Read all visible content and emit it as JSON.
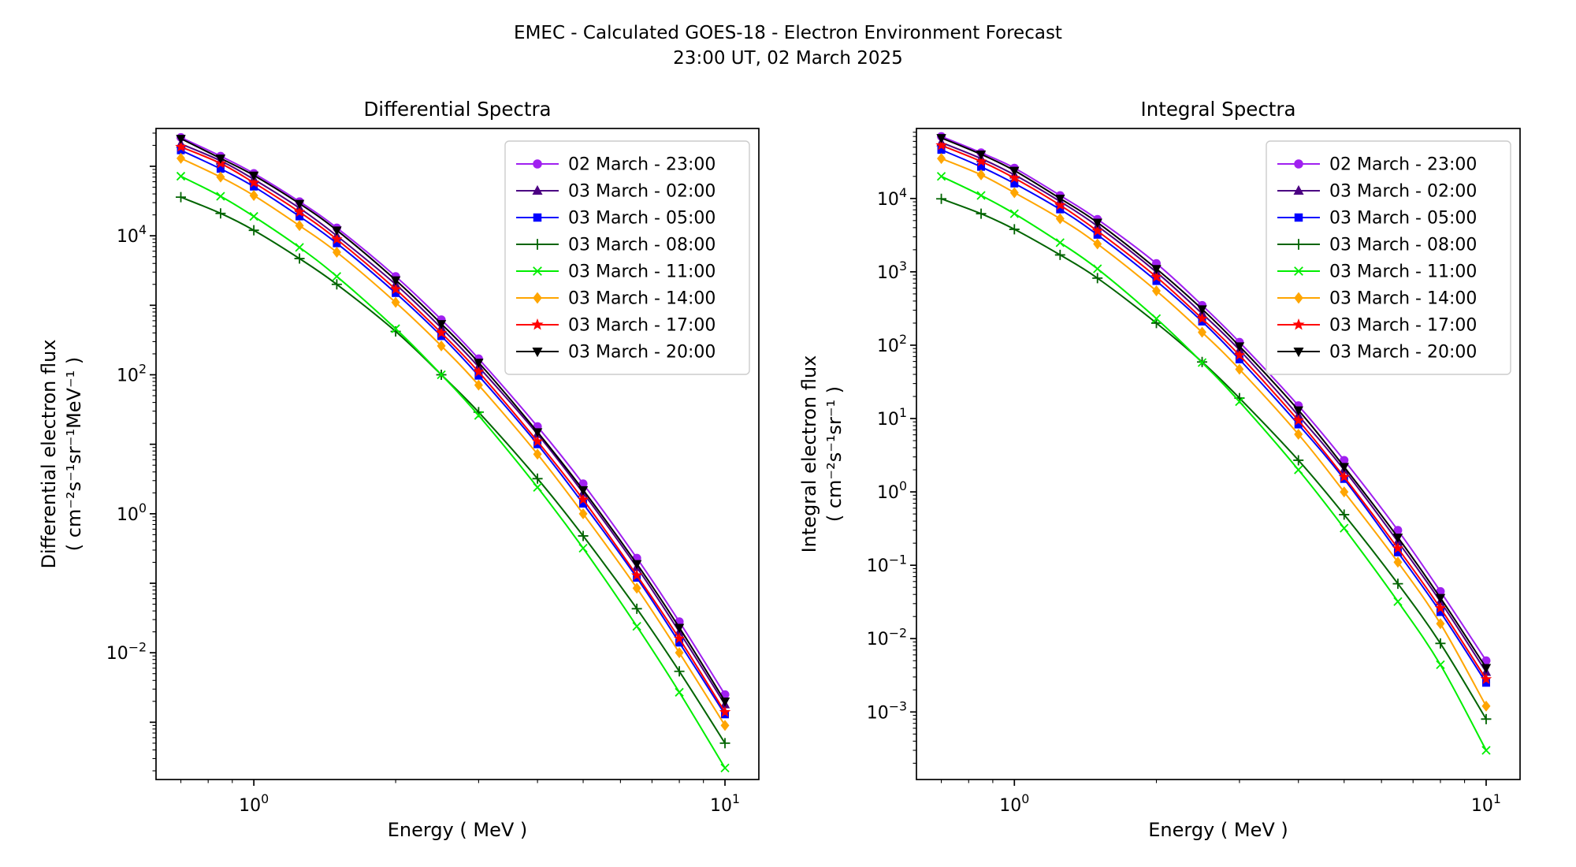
{
  "figure": {
    "title_line1": "EMEC - Calculated GOES-18 - Electron Environment Forecast",
    "title_line2": "23:00 UT, 02 March 2025",
    "background": "#ffffff",
    "text_color": "#000000"
  },
  "legend": {
    "border_color": "#cccccc",
    "fill_color": "#ffffff"
  },
  "chart_data": [
    {
      "type": "line",
      "title": "Differential Spectra",
      "xlabel": "Energy ( MeV )",
      "ylabel_line1": "Differential electron flux",
      "ylabel_line2": "( cm⁻²s⁻¹sr⁻¹MeV⁻¹ )",
      "xscale": "log",
      "yscale": "log",
      "grid": false,
      "legend_position": "upper right",
      "xlim": [
        0.62,
        11.8
      ],
      "ylim": [
        0.00015,
        350000.0
      ],
      "xticks": [
        {
          "value": 1,
          "label": "10⁰",
          "exp": 0
        },
        {
          "value": 10,
          "label": "10¹",
          "exp": 1
        }
      ],
      "yticks": [
        {
          "value": 10000,
          "label": "10⁴",
          "exp": 4
        },
        {
          "value": 100,
          "label": "10²",
          "exp": 2
        },
        {
          "value": 1,
          "label": "10⁰",
          "exp": 0
        },
        {
          "value": 0.01,
          "label": "10⁻²",
          "exp": -2
        }
      ],
      "x": [
        0.7,
        0.85,
        1.0,
        1.25,
        1.5,
        2.0,
        2.5,
        3.0,
        4.0,
        5.0,
        6.5,
        8.0,
        10.0
      ],
      "series": [
        {
          "name": "02 March - 23:00",
          "color": "#A020F0",
          "marker": "circle",
          "values": [
            260000,
            140000,
            79000,
            31000,
            13000,
            2600,
            620,
            170,
            18,
            2.7,
            0.23,
            0.028,
            0.0025
          ]
        },
        {
          "name": "03 March - 02:00",
          "color": "#4B0082",
          "marker": "triangle-up",
          "values": [
            210000,
            120000,
            65000,
            25000,
            10000,
            2000,
            470,
            130,
            14,
            2.0,
            0.17,
            0.02,
            0.0018
          ]
        },
        {
          "name": "03 March - 05:00",
          "color": "#0000FF",
          "marker": "square",
          "values": [
            170000,
            92000,
            51000,
            19000,
            7800,
            1500,
            360,
            97,
            10,
            1.4,
            0.12,
            0.014,
            0.0013
          ]
        },
        {
          "name": "03 March - 08:00",
          "color": "#006400",
          "marker": "plus",
          "values": [
            36000,
            21000,
            12000,
            4700,
            2000,
            420,
            100,
            29,
            3.2,
            0.48,
            0.043,
            0.0054,
            0.0005
          ]
        },
        {
          "name": "03 March - 11:00",
          "color": "#00EE00",
          "marker": "x",
          "values": [
            72000,
            37000,
            19000,
            6800,
            2600,
            460,
            100,
            26,
            2.4,
            0.32,
            0.024,
            0.0027,
            0.00022
          ]
        },
        {
          "name": "03 March - 14:00",
          "color": "#FFA500",
          "marker": "diamond",
          "values": [
            130000,
            70000,
            38000,
            14000,
            5800,
            1100,
            260,
            71,
            7.2,
            1.0,
            0.085,
            0.01,
            0.0009
          ]
        },
        {
          "name": "03 March - 17:00",
          "color": "#FF0000",
          "marker": "star",
          "values": [
            190000,
            110000,
            58000,
            22000,
            8900,
            1700,
            400,
            110,
            11,
            1.6,
            0.13,
            0.016,
            0.0014
          ]
        },
        {
          "name": "03 March - 20:00",
          "color": "#000000",
          "marker": "triangle-down",
          "values": [
            250000,
            130000,
            74000,
            29000,
            12000,
            2300,
            540,
            150,
            15,
            2.2,
            0.19,
            0.023,
            0.002
          ]
        }
      ]
    },
    {
      "type": "line",
      "title": "Integral Spectra",
      "xlabel": "Energy ( MeV )",
      "ylabel_line1": "Integral electron flux",
      "ylabel_line2": "( cm⁻²s⁻¹sr⁻¹ )",
      "xscale": "log",
      "yscale": "log",
      "grid": false,
      "legend_position": "upper right",
      "xlim": [
        0.62,
        11.8
      ],
      "ylim": [
        0.00012,
        90000.0
      ],
      "xticks": [
        {
          "value": 1,
          "label": "10⁰",
          "exp": 0
        },
        {
          "value": 10,
          "label": "10¹",
          "exp": 1
        }
      ],
      "yticks": [
        {
          "value": 10000,
          "label": "10⁴",
          "exp": 4
        },
        {
          "value": 1000,
          "label": "10³",
          "exp": 3
        },
        {
          "value": 100,
          "label": "10²",
          "exp": 2
        },
        {
          "value": 10,
          "label": "10¹",
          "exp": 1
        },
        {
          "value": 1,
          "label": "10⁰",
          "exp": 0
        },
        {
          "value": 0.1,
          "label": "10⁻¹",
          "exp": -1
        },
        {
          "value": 0.01,
          "label": "10⁻²",
          "exp": -2
        },
        {
          "value": 0.001,
          "label": "10⁻³",
          "exp": -3
        }
      ],
      "x": [
        0.7,
        0.85,
        1.0,
        1.25,
        1.5,
        2.0,
        2.5,
        3.0,
        4.0,
        5.0,
        6.5,
        8.0,
        10.0
      ],
      "series": [
        {
          "name": "02 March - 23:00",
          "color": "#A020F0",
          "marker": "circle",
          "values": [
            70000,
            42000,
            26000,
            11000,
            5200,
            1300,
            350,
            110,
            15,
            2.7,
            0.3,
            0.044,
            0.005
          ]
        },
        {
          "name": "03 March - 02:00",
          "color": "#4B0082",
          "marker": "triangle-up",
          "values": [
            58000,
            35000,
            21000,
            9100,
            4200,
            990,
            270,
            86,
            11,
            2.0,
            0.21,
            0.032,
            0.0035
          ]
        },
        {
          "name": "03 March - 05:00",
          "color": "#0000FF",
          "marker": "square",
          "values": [
            46000,
            27000,
            16000,
            7100,
            3200,
            750,
            210,
            64,
            8.3,
            1.5,
            0.15,
            0.023,
            0.0025
          ]
        },
        {
          "name": "03 March - 08:00",
          "color": "#006400",
          "marker": "plus",
          "values": [
            9900,
            6200,
            3800,
            1700,
            820,
            200,
            59,
            19,
            2.7,
            0.49,
            0.056,
            0.0086,
            0.0008
          ]
        },
        {
          "name": "03 March - 11:00",
          "color": "#00EE00",
          "marker": "x",
          "values": [
            20000,
            11000,
            6200,
            2500,
            1100,
            230,
            58,
            17,
            2.0,
            0.32,
            0.032,
            0.0044,
            0.0003
          ]
        },
        {
          "name": "03 March - 14:00",
          "color": "#FFA500",
          "marker": "diamond",
          "values": [
            35000,
            21000,
            12000,
            5300,
            2400,
            550,
            150,
            47,
            6.1,
            1.0,
            0.11,
            0.016,
            0.0012
          ]
        },
        {
          "name": "03 March - 17:00",
          "color": "#FF0000",
          "marker": "star",
          "values": [
            53000,
            32000,
            19000,
            8100,
            3600,
            850,
            230,
            73,
            9.4,
            1.6,
            0.17,
            0.026,
            0.0028
          ]
        },
        {
          "name": "03 March - 20:00",
          "color": "#000000",
          "marker": "triangle-down",
          "values": [
            67000,
            40000,
            24000,
            10000,
            4700,
            1100,
            310,
            97,
            13,
            2.2,
            0.24,
            0.036,
            0.004
          ]
        }
      ]
    }
  ]
}
